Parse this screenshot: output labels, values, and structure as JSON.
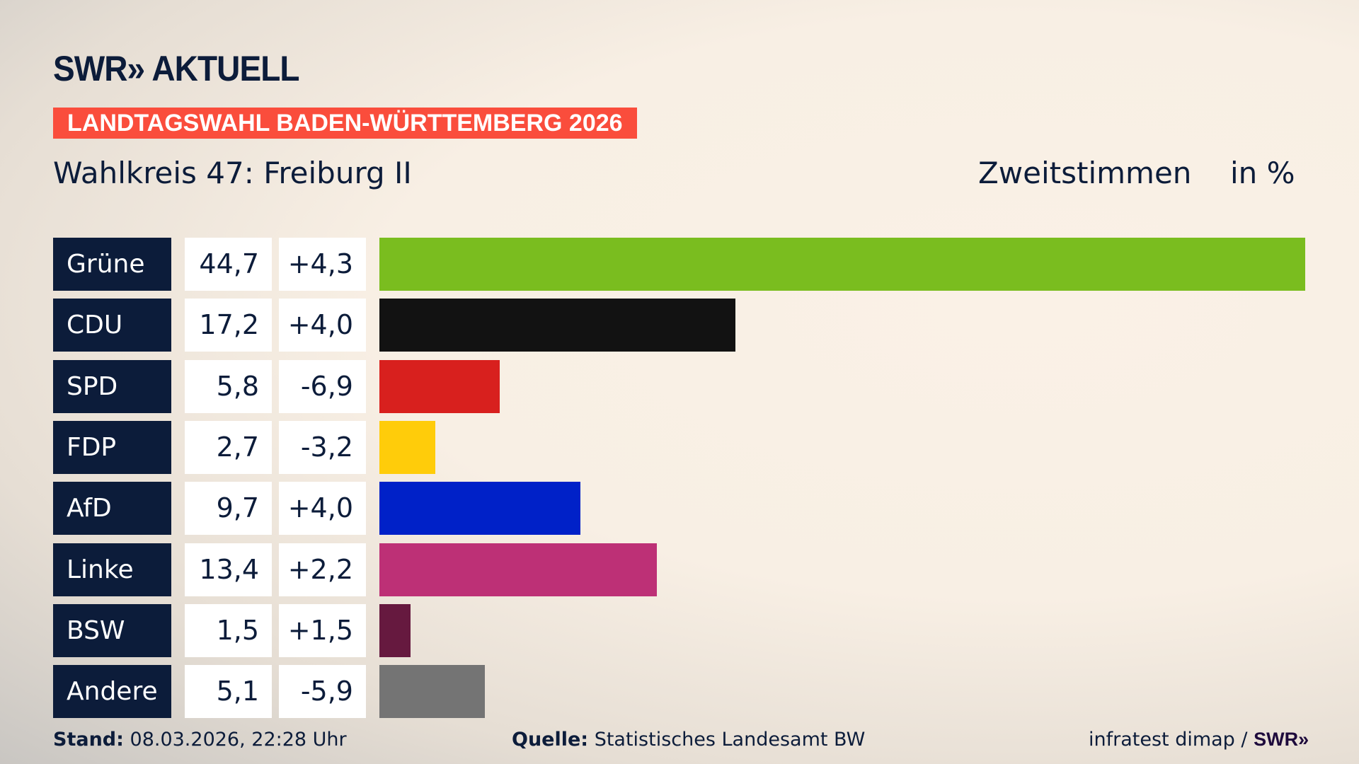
{
  "header": {
    "logo": "SWR» AKTUELL",
    "banner": "LANDTAGSWAHL BADEN-WÜRTTEMBERG 2026",
    "title": "Wahlkreis 47: Freiburg II",
    "vote_type": "Zweitstimmen",
    "unit": "in %"
  },
  "chart_data": {
    "type": "bar",
    "orientation": "horizontal",
    "title": "Wahlkreis 47: Freiburg II",
    "categories": [
      "Grüne",
      "CDU",
      "SPD",
      "FDP",
      "AfD",
      "Linke",
      "BSW",
      "Andere"
    ],
    "values": [
      44.7,
      17.2,
      5.8,
      2.7,
      9.7,
      13.4,
      1.5,
      5.1
    ],
    "labels": [
      "44,7",
      "17,2",
      "5,8",
      "2,7",
      "9,7",
      "13,4",
      "1,5",
      "5,1"
    ],
    "changes": [
      "+4,3",
      "+4,0",
      "-6,9",
      "-3,2",
      "+4,0",
      "+2,2",
      "+1,5",
      "-5,9"
    ],
    "colors": [
      "#7abd1f",
      "#121212",
      "#d8201e",
      "#ffcc0a",
      "#0021c8",
      "#bd3076",
      "#66193f",
      "#747474"
    ],
    "xlim": [
      0,
      44.7
    ]
  },
  "footer": {
    "stand_label": "Stand:",
    "stand_value": "08.03.2026, 22:28 Uhr",
    "source_label": "Quelle:",
    "source_value": "Statistisches Landesamt BW",
    "credit": "infratest dimap /",
    "credit_logo": "SWR»"
  }
}
